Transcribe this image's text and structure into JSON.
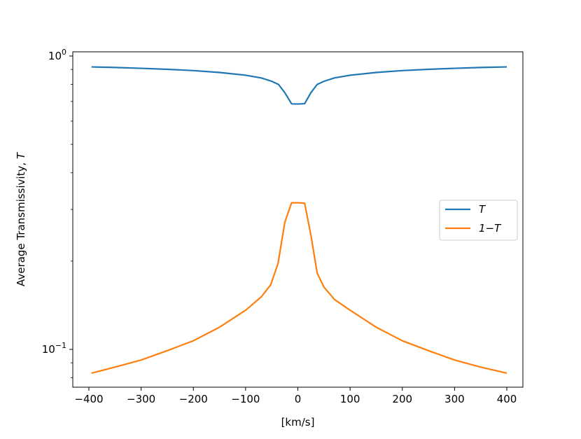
{
  "chart_data": {
    "type": "line",
    "title": "",
    "xlabel": "[km/s]",
    "ylabel": "Average Transmissivity, ",
    "ylabel_italic": "T",
    "xlim": [
      -400,
      400
    ],
    "ylim": [
      0.075,
      1.0
    ],
    "yscale": "log",
    "xticks": [
      -400,
      -300,
      -200,
      -100,
      0,
      100,
      200,
      300,
      400
    ],
    "xtick_labels": [
      "−400",
      "−300",
      "−200",
      "−100",
      "0",
      "100",
      "200",
      "300",
      "400"
    ],
    "ytick_labels": [
      {
        "base": "10",
        "exp": "0"
      },
      {
        "base": "10",
        "exp": "−1"
      }
    ],
    "legend_position": "center-right",
    "grid": false,
    "series": [
      {
        "name": "T",
        "color": "#1f77b4",
        "x": [
          -395,
          -350,
          -300,
          -250,
          -200,
          -150,
          -100,
          -70,
          -50,
          -37,
          -25,
          -12,
          0,
          13,
          25,
          37,
          50,
          70,
          100,
          150,
          200,
          250,
          300,
          350,
          400
        ],
        "y": [
          0.918,
          0.914,
          0.908,
          0.901,
          0.892,
          0.879,
          0.86,
          0.842,
          0.82,
          0.8,
          0.75,
          0.687,
          0.686,
          0.688,
          0.75,
          0.8,
          0.82,
          0.842,
          0.86,
          0.879,
          0.892,
          0.901,
          0.908,
          0.914,
          0.918
        ]
      },
      {
        "name": "1−T",
        "color": "#ff7f0e",
        "x": [
          -395,
          -350,
          -300,
          -250,
          -200,
          -150,
          -100,
          -70,
          -52,
          -38,
          -25,
          -12,
          0,
          13,
          25,
          37,
          50,
          70,
          100,
          150,
          200,
          250,
          300,
          350,
          400
        ],
        "y": [
          0.083,
          0.087,
          0.092,
          0.099,
          0.107,
          0.119,
          0.136,
          0.151,
          0.166,
          0.196,
          0.271,
          0.316,
          0.316,
          0.315,
          0.245,
          0.182,
          0.163,
          0.148,
          0.136,
          0.119,
          0.107,
          0.099,
          0.092,
          0.087,
          0.083
        ]
      }
    ]
  },
  "legend": {
    "items": [
      {
        "label": "T",
        "color": "#1f77b4"
      },
      {
        "label": "1−T",
        "color": "#ff7f0e"
      }
    ]
  }
}
